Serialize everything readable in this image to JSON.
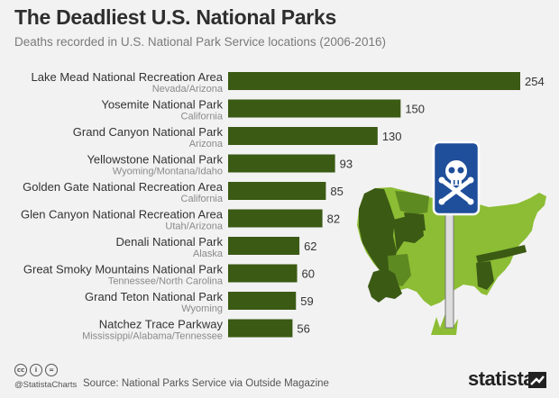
{
  "header": {
    "title": "The Deadliest U.S. National Parks",
    "subtitle": "Deaths recorded in U.S. National Park Service locations (2006-2016)"
  },
  "chart_data": {
    "type": "bar",
    "orientation": "horizontal",
    "title": "The Deadliest U.S. National Parks",
    "subtitle": "Deaths recorded in U.S. National Park Service locations (2006-2016)",
    "categories": [
      "Lake Mead National Recreation Area",
      "Yosemite National Park",
      "Grand Canyon National Park",
      "Yellowstone National Park",
      "Golden Gate National Recreation Area",
      "Glen Canyon National Recreation Area",
      "Denali National Park",
      "Great Smoky Mountains National Park",
      "Grand Teton National Park",
      "Natchez Trace Parkway"
    ],
    "sublabels": [
      "Nevada/Arizona",
      "California",
      "Arizona",
      "Wyoming/Montana/Idaho",
      "California",
      "Utah/Arizona",
      "Alaska",
      "Tennessee/North Carolina",
      "Wyoming",
      "Mississippi/Alabama/Tennessee"
    ],
    "values": [
      254,
      150,
      130,
      93,
      85,
      82,
      62,
      60,
      59,
      56
    ],
    "xlim": [
      0,
      254
    ],
    "bar_color": "#3b5a14",
    "xlabel": "",
    "ylabel": "",
    "grid": false
  },
  "illustration": {
    "sign_color": "#1f4e9a",
    "map_light_color": "#8cbd34",
    "map_dark_color": "#3b5a14"
  },
  "footer": {
    "cc_icons": [
      "cc",
      "i",
      "="
    ],
    "handle": "@StatistaCharts",
    "source": "Source: National Parks Service via Outside Magazine",
    "brand": "statista"
  }
}
